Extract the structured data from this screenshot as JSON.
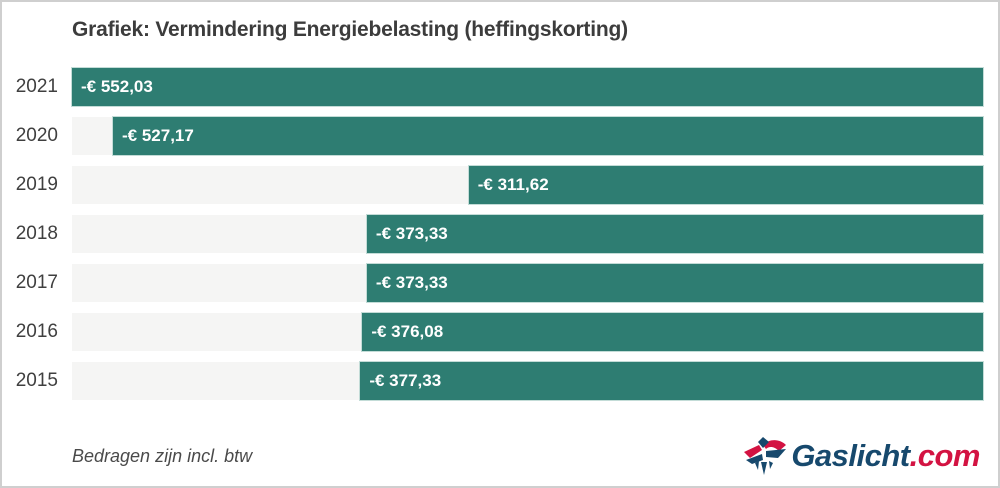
{
  "title": "Grafiek: Vermindering Energiebelasting (heffingskorting)",
  "footnote": "Bedragen zijn incl. btw",
  "logo": {
    "name": "Gaslicht.com",
    "text_main": "Gaslicht",
    "text_suffix": ".com"
  },
  "colors": {
    "bar": "#2e7d72",
    "bar_edge": "#c3dcd7",
    "track": "#f5f5f4",
    "border": "#cfcfcf",
    "title_text": "#3c3c3c",
    "logo_blue": "#17496d",
    "logo_red": "#d31342"
  },
  "chart_data": {
    "type": "bar",
    "orientation": "horizontal",
    "anchor": "right",
    "title": "Grafiek: Vermindering Energiebelasting (heffingskorting)",
    "categories": [
      "2021",
      "2020",
      "2019",
      "2018",
      "2017",
      "2016",
      "2015"
    ],
    "values": [
      -552.03,
      -527.17,
      -311.62,
      -373.33,
      -373.33,
      -376.08,
      -377.33
    ],
    "labels": [
      "-€ 552,03",
      "-€ 527,17",
      "-€ 311,62",
      "-€ 373,33",
      "-€ 373,33",
      "-€ 376,08",
      "-€ 377,33"
    ],
    "xlabel": "",
    "ylabel": "",
    "xlim_abs": [
      0,
      552.03
    ],
    "grid": false,
    "legend": false,
    "note": "Bedragen zijn incl. btw"
  }
}
